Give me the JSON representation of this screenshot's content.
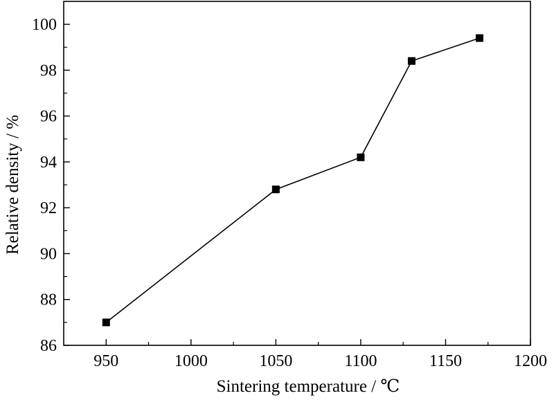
{
  "chart_data": {
    "type": "line",
    "xlabel": "Sintering temperature / ℃",
    "ylabel": "Relative density / %",
    "xlim": [
      925,
      1200
    ],
    "ylim": [
      86,
      101
    ],
    "x_ticks": [
      950,
      1000,
      1050,
      1100,
      1150,
      1200
    ],
    "y_ticks": [
      86,
      88,
      90,
      92,
      94,
      96,
      98,
      100
    ],
    "x_minor_step": 25,
    "y_minor_step": 1,
    "grid": false,
    "marker": "square",
    "line_color": "#000000",
    "series": [
      {
        "x": [
          950,
          1050,
          1100,
          1130,
          1170
        ],
        "values": [
          87.0,
          92.8,
          94.2,
          98.4,
          99.4
        ]
      }
    ]
  }
}
